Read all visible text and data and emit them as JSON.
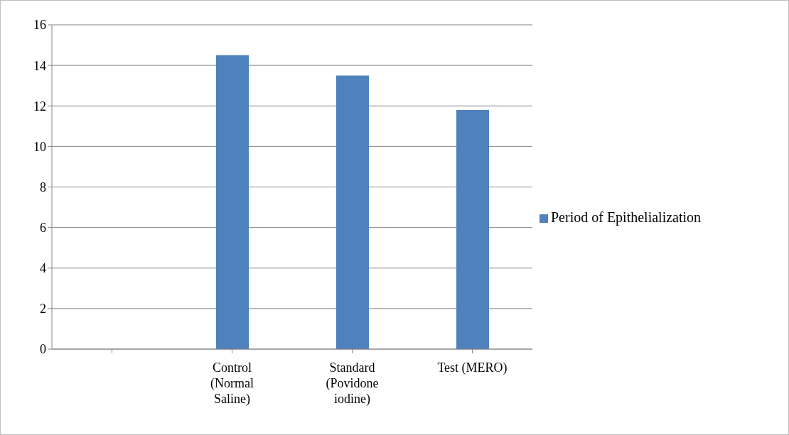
{
  "chart_data": {
    "type": "bar",
    "categories": [
      null,
      "Control (Normal Saline)",
      "Standard (Povidone iodine)",
      "Test (MERO)"
    ],
    "series": [
      {
        "name": "Period of Epithelialization",
        "color": "#4f81bd",
        "values": [
          null,
          14.5,
          13.5,
          11.8
        ]
      }
    ],
    "ylim": [
      0,
      16
    ],
    "yticks": [
      0,
      2,
      4,
      6,
      8,
      10,
      12,
      14,
      16
    ],
    "grid": "y",
    "legend": "right"
  }
}
